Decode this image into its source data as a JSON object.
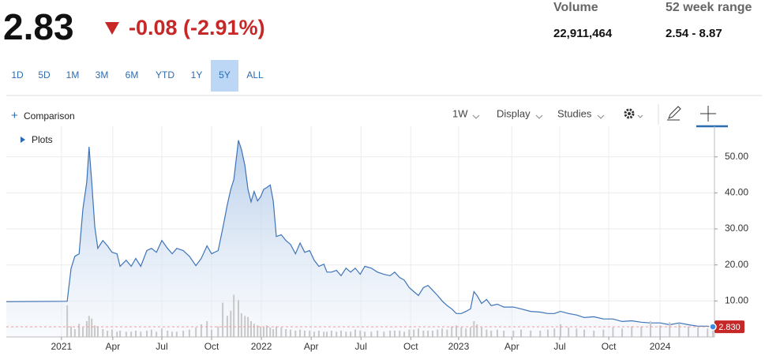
{
  "quote": {
    "price": "2.83",
    "change": "-0.08 (-2.91%)",
    "stats": [
      {
        "label": "Volume",
        "value": "22,911,464"
      },
      {
        "label": "52 week range",
        "value": "2.54 - 8.87"
      }
    ],
    "ranges": [
      "1D",
      "5D",
      "1M",
      "3M",
      "6M",
      "YTD",
      "1Y",
      "5Y",
      "ALL"
    ],
    "selected_range": "5Y"
  },
  "toolbar": {
    "comparison": "Comparison",
    "interval": "1W",
    "menus": [
      "Display",
      "Studies"
    ],
    "plots": "Plots"
  },
  "chart_data": {
    "type": "area",
    "x": [
      0,
      15.9,
      16.9,
      17.9,
      19.0,
      20.0,
      21.0,
      21.6,
      22.3,
      23.1,
      23.9,
      25.2,
      26.4,
      27.6,
      28.9,
      29.7,
      31.3,
      32.6,
      33.8,
      35.1,
      36.7,
      37.9,
      39.2,
      40.6,
      42.1,
      43.3,
      44.5,
      46.2,
      47.8,
      49.5,
      50.9,
      52.4,
      53.6,
      55.3,
      56.5,
      57.7,
      58.6,
      59.4,
      60.6,
      61.4,
      62.3,
      63.1,
      63.9,
      64.7,
      65.6,
      66.4,
      67.2,
      68.0,
      68.9,
      69.7,
      70.5,
      71.8,
      73.0,
      74.2,
      75.5,
      76.7,
      77.9,
      79.2,
      80.4,
      81.6,
      82.9,
      83.7,
      84.9,
      86.2,
      87.4,
      88.7,
      89.9,
      91.1,
      92.4,
      93.6,
      95.3,
      96.9,
      98.6,
      100.2,
      101.4,
      102.7,
      103.9,
      105.2,
      106.4,
      107.6,
      108.9,
      110.1,
      111.3,
      112.6,
      113.8,
      115.1,
      116.3,
      117.5,
      118.8,
      120.0,
      121.2,
      122.1,
      122.9,
      124.1,
      125.4,
      126.6,
      128.2,
      129.9,
      132.4,
      134.4,
      136.9,
      139.4,
      141.4,
      143.1,
      144.7,
      146.8,
      148.9,
      150.9,
      153.4,
      155.9,
      158.4,
      160.8,
      163.3,
      165.8,
      168.2,
      170.7,
      173.2,
      175.7,
      178.1,
      180.6,
      183.1,
      184.5
    ],
    "series": [
      {
        "name": "Price",
        "color": "#3d74b8",
        "values": [
          9.8,
          9.9,
          19,
          22.4,
          23.1,
          35.5,
          43,
          52.8,
          43,
          30.5,
          24.6,
          26.8,
          25.3,
          23.5,
          23.1,
          19.6,
          21.3,
          19.6,
          21.8,
          19.6,
          24,
          24.6,
          23.5,
          26.8,
          24.6,
          23.1,
          24.6,
          24,
          22.4,
          19.8,
          21.8,
          25.3,
          23.1,
          24,
          30.1,
          36.7,
          41,
          43.7,
          54.6,
          52,
          47.6,
          41,
          37.5,
          40.4,
          37.8,
          38.9,
          41,
          41.5,
          42.2,
          37.8,
          27.9,
          28.4,
          26.8,
          25.7,
          23.1,
          26.1,
          23.5,
          24,
          21.3,
          19.6,
          20.2,
          18,
          18,
          18.5,
          17,
          19.1,
          18,
          19.1,
          17.4,
          19.6,
          19.1,
          18,
          17.4,
          17,
          18,
          16.5,
          15.8,
          13.7,
          12.6,
          11.5,
          13.7,
          14.3,
          13,
          11.5,
          10,
          8.7,
          7.8,
          6.5,
          6.5,
          7.1,
          7.8,
          12.6,
          11.5,
          9.3,
          10.4,
          8.7,
          9.1,
          8.3,
          8.3,
          7.8,
          7.1,
          6.9,
          6.5,
          6.5,
          7.1,
          6.5,
          6.1,
          5.4,
          5.6,
          5,
          5,
          4.3,
          4.5,
          4.1,
          3.9,
          3.9,
          3.4,
          3.9,
          3.4,
          3,
          3,
          2.83
        ]
      },
      {
        "name": "Volume",
        "color": "#c8c8c8",
        "axis": "y2",
        "values": [
          null,
          60,
          20,
          15,
          25,
          18,
          30,
          40,
          35,
          22,
          20,
          15,
          12,
          14,
          10,
          12,
          10,
          10,
          12,
          10,
          12,
          14,
          10,
          16,
          12,
          10,
          10,
          12,
          14,
          18,
          24,
          30,
          14,
          20,
          65,
          40,
          50,
          80,
          70,
          45,
          40,
          38,
          30,
          25,
          22,
          20,
          18,
          22,
          18,
          15,
          20,
          18,
          15,
          14,
          12,
          14,
          12,
          12,
          10,
          12,
          10,
          10,
          12,
          10,
          12,
          10,
          10,
          14,
          12,
          10,
          10,
          12,
          10,
          12,
          12,
          12,
          10,
          14,
          14,
          16,
          12,
          12,
          12,
          14,
          16,
          14,
          20,
          22,
          18,
          16,
          18,
          30,
          24,
          18,
          14,
          12,
          14,
          12,
          12,
          14,
          12,
          12,
          14,
          16,
          24,
          18,
          16,
          14,
          12,
          14,
          18,
          16,
          20,
          20,
          30,
          22,
          28,
          26,
          20,
          18,
          16,
          14
        ]
      }
    ],
    "xlim": [
      0,
      184.9
    ],
    "xticks": [
      {
        "value": 14.4,
        "label": "2021"
      },
      {
        "value": 27.8,
        "label": "Apr"
      },
      {
        "value": 40.6,
        "label": "Jul"
      },
      {
        "value": 53.6,
        "label": "Oct"
      },
      {
        "value": 66.6,
        "label": "2022"
      },
      {
        "value": 79.6,
        "label": "Apr"
      },
      {
        "value": 92.6,
        "label": "Jul"
      },
      {
        "value": 105.6,
        "label": "Oct"
      },
      {
        "value": 118.1,
        "label": "2023"
      },
      {
        "value": 132.0,
        "label": "Apr"
      },
      {
        "value": 144.5,
        "label": "Jul"
      },
      {
        "value": 157.3,
        "label": "Oct"
      },
      {
        "value": 170.7,
        "label": "2024"
      }
    ],
    "ylim": [
      0,
      58.5
    ],
    "yticks": [
      {
        "value": 10,
        "label": "10.00"
      },
      {
        "value": 20,
        "label": "20.00"
      },
      {
        "value": 30,
        "label": "30.00"
      },
      {
        "value": 40,
        "label": "40.00"
      },
      {
        "value": 50,
        "label": "50.00"
      }
    ],
    "y2lim": [
      0,
      400
    ],
    "last_price": {
      "value": 2.83,
      "label": "2.830"
    },
    "grid": true
  }
}
